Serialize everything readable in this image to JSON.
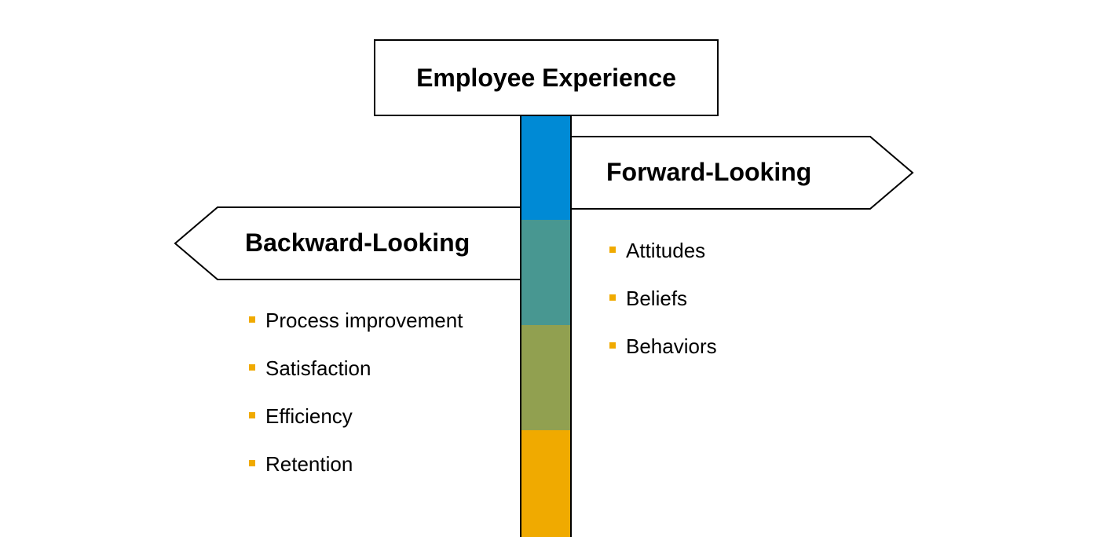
{
  "title": "Employee Experience",
  "forward": {
    "label": "Forward-Looking",
    "items": [
      "Attitudes",
      "Beliefs",
      "Behaviors"
    ]
  },
  "backward": {
    "label": "Backward-Looking",
    "items": [
      "Process improvement",
      "Satisfaction",
      "Efficiency",
      "Retention"
    ]
  },
  "colors": {
    "pole_segments": [
      "#008ad5",
      "#489791",
      "#91a050",
      "#f0aa00"
    ],
    "bullet": "#f0aa00",
    "sign_border": "#000000",
    "sign_fill": "#ffffff"
  }
}
